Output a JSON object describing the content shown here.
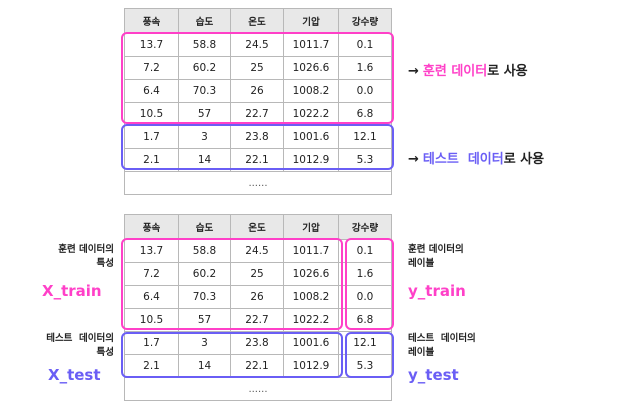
{
  "headers": [
    "풍속",
    "습도",
    "온도",
    "기압",
    "강수량"
  ],
  "rows": [
    [
      "13.7",
      "58.8",
      "24.5",
      "1011.7",
      "0.1"
    ],
    [
      "7.2",
      "60.2",
      "25",
      "1026.6",
      "1.6"
    ],
    [
      "6.4",
      "70.3",
      "26",
      "1008.2",
      "0.0"
    ],
    [
      "10.5",
      "57",
      "22.7",
      "1022.2",
      "6.8"
    ],
    [
      "1.7",
      "3",
      "23.8",
      "1001.6",
      "12.1"
    ],
    [
      "2.1",
      "14",
      "22.1",
      "1012.9",
      "5.3"
    ]
  ],
  "ellipsis": "......",
  "top_annotations": {
    "train": {
      "arrow": "→",
      "highlight": "훈련 데이터",
      "suffix": "로 사용"
    },
    "test": {
      "arrow": "→",
      "highlight": "테스트  데이터",
      "suffix": "로 사용"
    }
  },
  "bottom_labels": {
    "train_features": {
      "line1": "훈련 데이터의",
      "line2": "특성",
      "var": "X_train"
    },
    "train_labels": {
      "line1": "훈련 데이터의",
      "line2": "레이블",
      "var": "y_train"
    },
    "test_features": {
      "line1": "테스트  데이터의",
      "line2": "특성",
      "var": "X_test"
    },
    "test_labels": {
      "line1": "테스트  데이터의",
      "line2": "레이블",
      "var": "y_test"
    }
  },
  "colors": {
    "train": "#ff40c8",
    "test": "#6a5ef5",
    "header_bg": "#e8e8e8",
    "grid": "#b8b8b8"
  }
}
